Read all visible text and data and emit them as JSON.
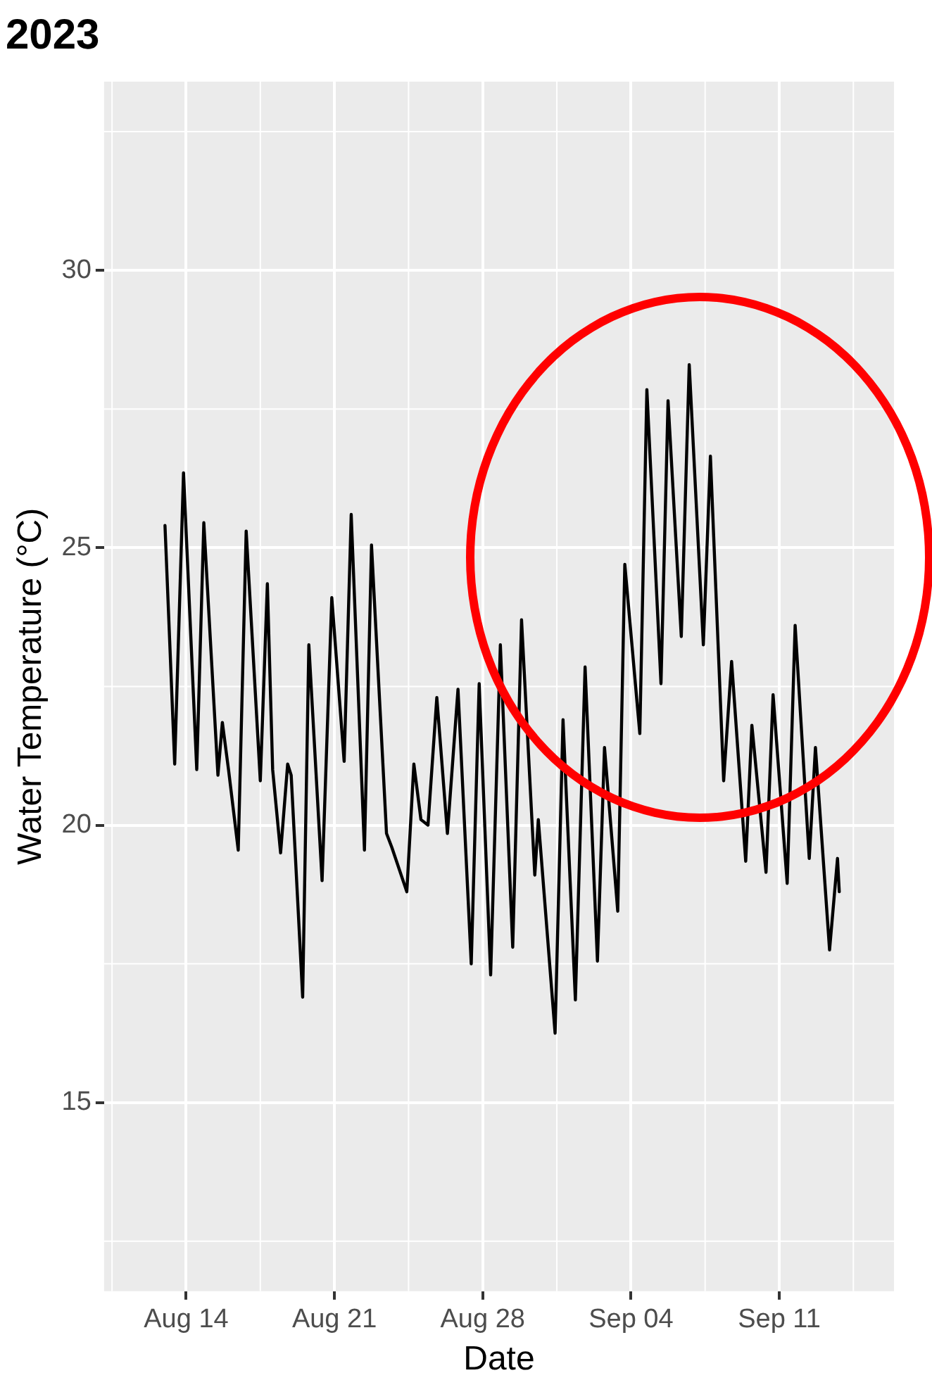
{
  "chart_data": {
    "type": "line",
    "title": "2023",
    "xlabel": "Date",
    "ylabel": "Water Temperature (°C)",
    "x": [
      "2023-08-13T00:00",
      "2023-08-13T11:00",
      "2023-08-13T21:00",
      "2023-08-14T12:00",
      "2023-08-14T20:00",
      "2023-08-15T12:00",
      "2023-08-15T17:00",
      "2023-08-16T00:00",
      "2023-08-16T11:00",
      "2023-08-16T20:00",
      "2023-08-17T12:00",
      "2023-08-17T20:00",
      "2023-08-18T02:00",
      "2023-08-18T11:00",
      "2023-08-18T19:00",
      "2023-08-18T23:00",
      "2023-08-19T12:00",
      "2023-08-19T19:00",
      "2023-08-20T10:00",
      "2023-08-20T21:00",
      "2023-08-21T11:00",
      "2023-08-21T19:00",
      "2023-08-22T10:00",
      "2023-08-22T18:00",
      "2023-08-23T11:00",
      "2023-08-23T17:00",
      "2023-08-24T10:00",
      "2023-08-24T18:00",
      "2023-08-25T02:00",
      "2023-08-25T10:00",
      "2023-08-25T20:00",
      "2023-08-26T08:00",
      "2023-08-26T20:00",
      "2023-08-27T11:00",
      "2023-08-27T20:00",
      "2023-08-28T09:00",
      "2023-08-28T20:00",
      "2023-08-29T10:00",
      "2023-08-29T20:00",
      "2023-08-30T11:00",
      "2023-08-30T15:00",
      "2023-08-31T10:00",
      "2023-08-31T19:00",
      "2023-09-01T09:00",
      "2023-09-01T20:00",
      "2023-09-02T10:00",
      "2023-09-02T18:00",
      "2023-09-03T09:00",
      "2023-09-03T17:00",
      "2023-09-04T10:00",
      "2023-09-04T18:00",
      "2023-09-05T10:00",
      "2023-09-05T18:00",
      "2023-09-06T09:00",
      "2023-09-06T18:00",
      "2023-09-07T10:00",
      "2023-09-07T18:00",
      "2023-09-08T09:00",
      "2023-09-08T18:00",
      "2023-09-09T10:00",
      "2023-09-09T17:00",
      "2023-09-10T09:00",
      "2023-09-10T17:00",
      "2023-09-11T09:00",
      "2023-09-11T18:00",
      "2023-09-12T10:00",
      "2023-09-12T17:00",
      "2023-09-13T09:00",
      "2023-09-13T18:00",
      "2023-09-13T20:00"
    ],
    "series": [
      {
        "color": "#000000",
        "values": [
          25.4,
          21.1,
          26.35,
          21.0,
          25.45,
          20.9,
          21.85,
          21.0,
          19.55,
          25.3,
          20.8,
          24.35,
          21.0,
          19.5,
          21.1,
          20.9,
          16.9,
          23.25,
          19.0,
          24.1,
          21.15,
          25.6,
          19.55,
          25.05,
          19.85,
          19.6,
          18.8,
          21.1,
          20.1,
          20.0,
          22.3,
          19.85,
          22.45,
          17.5,
          22.55,
          17.3,
          23.25,
          17.8,
          23.7,
          19.1,
          20.1,
          16.25,
          21.9,
          16.85,
          22.85,
          17.55,
          21.4,
          18.45,
          24.7,
          21.65,
          27.85,
          22.55,
          27.65,
          23.4,
          28.3,
          23.25,
          26.65,
          20.8,
          22.95,
          19.35,
          21.8,
          19.15,
          22.35,
          18.95,
          23.6,
          19.4,
          21.4,
          17.75,
          19.4,
          18.8
        ]
      }
    ],
    "xlim": [
      "2023-08-10T03:00",
      "2023-09-16T10:00"
    ],
    "xticks": [
      {
        "value": "2023-08-14",
        "label": "Aug 14"
      },
      {
        "value": "2023-08-21",
        "label": "Aug 21"
      },
      {
        "value": "2023-08-28",
        "label": "Aug 28"
      },
      {
        "value": "2023-09-04",
        "label": "Sep 04"
      },
      {
        "value": "2023-09-11",
        "label": "Sep 11"
      }
    ],
    "ylim": [
      11.6,
      33.4
    ],
    "yticks": [
      15,
      20,
      25,
      30
    ],
    "grid": true,
    "legend": false,
    "marker": "none",
    "line_style": "solid"
  }
}
